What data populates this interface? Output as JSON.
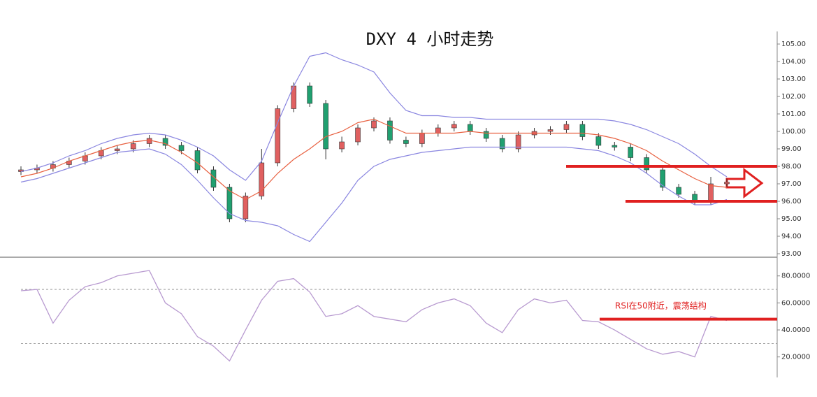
{
  "chart_data": [
    {
      "type": "candlestick",
      "title": "DXY 4 小时走势",
      "open": [
        97.7,
        97.8,
        97.9,
        98.1,
        98.3,
        98.6,
        98.9,
        99.0,
        99.3,
        99.6,
        99.2,
        98.9,
        97.8,
        96.8,
        95.0,
        96.3,
        98.2,
        101.3,
        102.6,
        101.6,
        99.0,
        99.4,
        100.2,
        100.6,
        99.5,
        99.3,
        99.9,
        100.2,
        100.4,
        100.0,
        99.6,
        99.0,
        99.8,
        100.0,
        100.1,
        100.4,
        99.7,
        99.2,
        99.1,
        98.5,
        97.8,
        96.8,
        96.4,
        96.0,
        97.0
      ],
      "high": [
        98.0,
        98.1,
        98.3,
        98.5,
        98.8,
        99.1,
        99.2,
        99.5,
        99.8,
        99.8,
        99.4,
        99.1,
        98.0,
        97.0,
        96.5,
        99.0,
        101.5,
        102.8,
        102.8,
        101.8,
        99.7,
        100.4,
        100.8,
        100.8,
        99.7,
        100.1,
        100.4,
        100.6,
        100.6,
        100.2,
        99.8,
        100.0,
        100.2,
        100.3,
        100.6,
        100.6,
        99.9,
        99.4,
        99.3,
        98.7,
        98.0,
        97.0,
        96.6,
        97.4,
        97.3
      ],
      "low": [
        97.5,
        97.6,
        97.7,
        97.9,
        98.1,
        98.4,
        98.7,
        98.8,
        99.1,
        99.0,
        98.7,
        97.6,
        96.6,
        94.8,
        94.8,
        96.1,
        98.0,
        101.1,
        101.4,
        98.4,
        98.8,
        99.2,
        100.0,
        99.3,
        99.1,
        99.1,
        99.7,
        100.0,
        99.8,
        99.4,
        98.8,
        98.8,
        99.6,
        99.8,
        99.9,
        99.5,
        99.0,
        98.9,
        98.3,
        97.6,
        96.6,
        96.2,
        95.8,
        95.8,
        96.8
      ],
      "close": [
        97.8,
        97.9,
        98.1,
        98.3,
        98.6,
        98.9,
        99.0,
        99.3,
        99.6,
        99.2,
        98.9,
        97.8,
        96.8,
        95.0,
        96.3,
        98.2,
        101.3,
        102.6,
        101.6,
        99.0,
        99.4,
        100.2,
        100.6,
        99.5,
        99.3,
        99.9,
        100.2,
        100.4,
        100.0,
        99.6,
        99.0,
        99.8,
        100.0,
        100.1,
        100.4,
        99.7,
        99.2,
        99.1,
        98.5,
        97.8,
        96.8,
        96.4,
        96.0,
        97.0,
        97.1
      ],
      "up_color": "#e06060",
      "down_color": "#20a070",
      "overlays": [
        {
          "color": "#8a86e0",
          "values": [
            97.7,
            97.9,
            98.2,
            98.6,
            98.9,
            99.3,
            99.6,
            99.8,
            99.9,
            99.8,
            99.5,
            99.1,
            98.6,
            97.8,
            97.2,
            98.3,
            100.5,
            102.6,
            104.3,
            104.5,
            104.1,
            103.8,
            103.4,
            102.2,
            101.2,
            100.9,
            100.9,
            100.8,
            100.8,
            100.7,
            100.7,
            100.7,
            100.7,
            100.7,
            100.7,
            100.7,
            100.7,
            100.6,
            100.4,
            100.1,
            99.7,
            99.3,
            98.7,
            98.0,
            97.4
          ]
        },
        {
          "color": "#e86040",
          "values": [
            97.4,
            97.6,
            97.9,
            98.3,
            98.6,
            98.9,
            99.2,
            99.4,
            99.5,
            99.3,
            98.8,
            98.2,
            97.4,
            96.6,
            96.1,
            96.6,
            97.6,
            98.4,
            99.0,
            99.7,
            100.0,
            100.5,
            100.7,
            100.3,
            99.9,
            99.9,
            99.9,
            99.9,
            100.0,
            99.9,
            99.9,
            99.9,
            99.9,
            99.9,
            99.9,
            99.9,
            99.8,
            99.6,
            99.3,
            98.9,
            98.3,
            97.8,
            97.3,
            96.9,
            96.8
          ]
        },
        {
          "color": "#8a86e0",
          "values": [
            97.1,
            97.3,
            97.6,
            97.9,
            98.2,
            98.5,
            98.8,
            98.9,
            99.0,
            98.7,
            98.1,
            97.2,
            96.2,
            95.3,
            94.9,
            94.8,
            94.6,
            94.1,
            93.7,
            94.8,
            95.9,
            97.2,
            98.0,
            98.4,
            98.6,
            98.8,
            98.9,
            99.0,
            99.1,
            99.1,
            99.1,
            99.1,
            99.1,
            99.1,
            99.1,
            99.0,
            98.9,
            98.6,
            98.2,
            97.6,
            96.9,
            96.3,
            95.8,
            95.8,
            96.1
          ]
        }
      ],
      "ylim": [
        93,
        105.7
      ],
      "yticks": [
        {
          "value": 93,
          "label": "93.00"
        },
        {
          "value": 94,
          "label": "94.00"
        },
        {
          "value": 95,
          "label": "95.00"
        },
        {
          "value": 96,
          "label": "96.00"
        },
        {
          "value": 97,
          "label": "97.00"
        },
        {
          "value": 98,
          "label": "98.00"
        },
        {
          "value": 99,
          "label": "99.00"
        },
        {
          "value": 100,
          "label": "100.00"
        },
        {
          "value": 101,
          "label": "101.00"
        },
        {
          "value": 102,
          "label": "102.00"
        },
        {
          "value": 103,
          "label": "103.00"
        },
        {
          "value": 104,
          "label": "104.00"
        },
        {
          "value": 105,
          "label": "105.00"
        }
      ],
      "hlines": [
        98,
        96
      ],
      "hline_color": "#e02020"
    },
    {
      "type": "line",
      "color": "#b89ad0",
      "values": [
        69,
        70,
        45,
        62,
        72,
        75,
        80,
        82,
        84,
        60,
        52,
        35,
        28,
        17,
        40,
        62,
        76,
        78,
        68,
        50,
        52,
        58,
        50,
        48,
        46,
        55,
        60,
        63,
        58,
        45,
        38,
        55,
        63,
        60,
        62,
        47,
        46,
        40,
        33,
        26,
        22,
        24,
        20,
        50,
        47
      ],
      "ylim": [
        10,
        92.8
      ],
      "yticks": [
        {
          "value": 20,
          "label": "20.0000"
        },
        {
          "value": 40,
          "label": "40.0000"
        },
        {
          "value": 60,
          "label": "60.0000"
        },
        {
          "value": 80,
          "label": "80.0000"
        }
      ],
      "reference_lines": [
        70,
        30
      ],
      "hlines": [
        48
      ],
      "hline_color": "#e02020",
      "annotation": "RSI在50附近，震荡结构",
      "annotation_color": "#e02020"
    }
  ]
}
